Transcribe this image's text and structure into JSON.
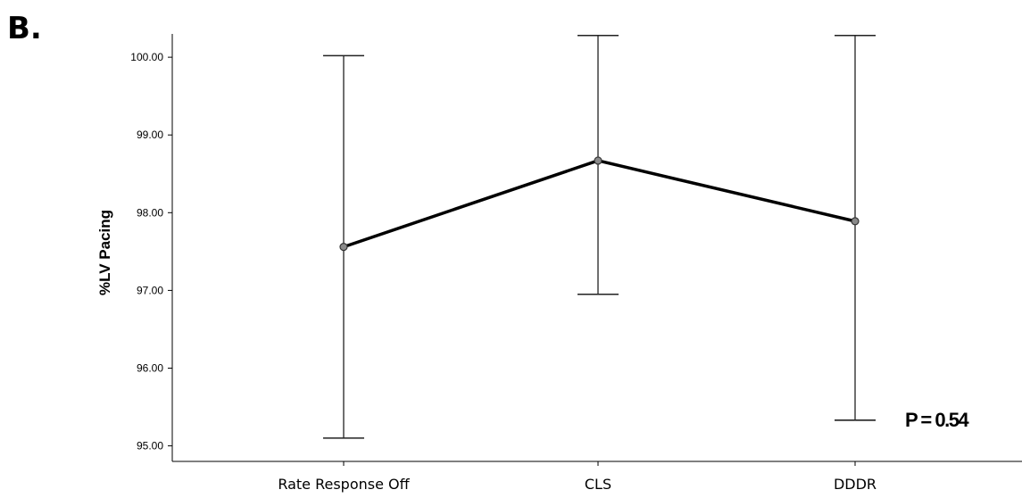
{
  "figure": {
    "panel_label": "B.",
    "annotation": "P = 0.54"
  },
  "colors": {
    "line": "#000000",
    "marker_fill": "#8a8a8a",
    "error_bar": "#222222",
    "axis": "#000000"
  },
  "chart_data": {
    "type": "line",
    "title": "",
    "xlabel": "",
    "ylabel": "%LV Pacing",
    "categories": [
      "Rate Response Off",
      "CLS",
      "DDDR"
    ],
    "values": [
      97.56,
      98.67,
      97.89
    ],
    "error_bars": {
      "lower": [
        95.1,
        96.95,
        95.33
      ],
      "upper": [
        100.02,
        100.28,
        100.28
      ]
    },
    "ylim": [
      94.8,
      100.3
    ],
    "yticks": [
      95.0,
      96.0,
      97.0,
      98.0,
      99.0,
      100.0
    ],
    "ytick_labels": [
      "95.00",
      "96.00",
      "97.00",
      "98.00",
      "99.00",
      "100.00"
    ],
    "grid": false,
    "legend": "none"
  }
}
